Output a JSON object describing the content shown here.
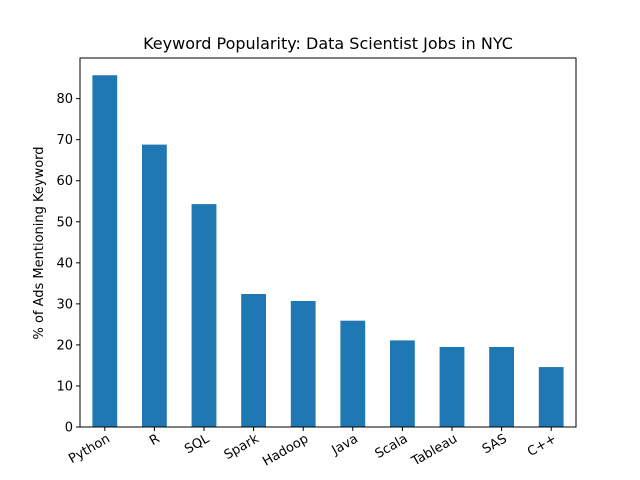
{
  "chart_data": {
    "type": "bar",
    "title": "Keyword Popularity: Data Scientist Jobs in NYC",
    "xlabel": "",
    "ylabel": "% of Ads Mentioning Keyword",
    "categories": [
      "Python",
      "R",
      "SQL",
      "Spark",
      "Hadoop",
      "Java",
      "Scala",
      "Tableau",
      "SAS",
      "C++"
    ],
    "values": [
      85.7,
      68.8,
      54.3,
      32.4,
      30.7,
      25.9,
      21.1,
      19.5,
      19.5,
      14.6
    ],
    "ylim": [
      0,
      89.9
    ],
    "yticks": [
      0,
      10,
      20,
      30,
      40,
      50,
      60,
      70,
      80
    ],
    "grid": false,
    "legend": "none",
    "colors": {
      "bar": "#1f77b4"
    }
  }
}
